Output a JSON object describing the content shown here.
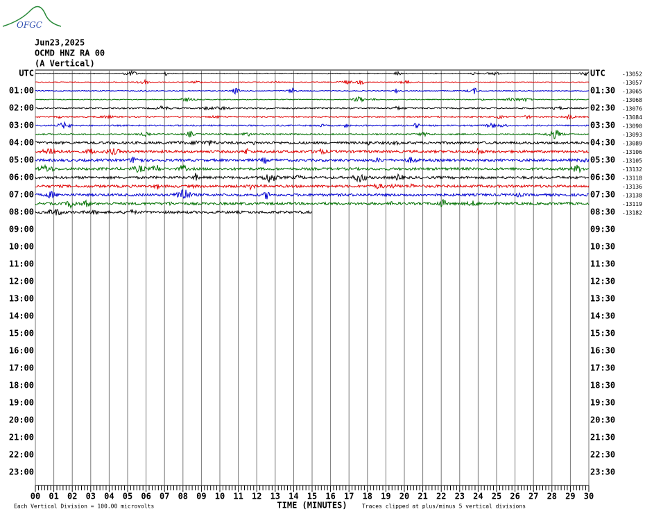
{
  "logo": "OFGC",
  "header": {
    "date": "Jun23,2025",
    "station": "OCMD HNZ RA 00",
    "component": "(A Vertical)"
  },
  "left_labels": [
    "UTC",
    "01:00",
    "02:00",
    "03:00",
    "04:00",
    "05:00",
    "06:00",
    "07:00",
    "08:00",
    "09:00",
    "10:00",
    "11:00",
    "12:00",
    "13:00",
    "14:00",
    "15:00",
    "16:00",
    "17:00",
    "18:00",
    "19:00",
    "20:00",
    "21:00",
    "22:00",
    "23:00"
  ],
  "right_labels": [
    "UTC",
    "01:30",
    "02:30",
    "03:30",
    "04:30",
    "05:30",
    "06:30",
    "07:30",
    "08:30",
    "09:30",
    "10:30",
    "11:30",
    "12:30",
    "13:30",
    "14:30",
    "15:30",
    "16:30",
    "17:30",
    "18:30",
    "19:30",
    "20:30",
    "21:30",
    "22:30",
    "23:30"
  ],
  "offsets": [
    "-13052",
    "-13057",
    "-13065",
    "-13068",
    "-13076",
    "-13084",
    "-13090",
    "-13093",
    "-13089",
    "-13106",
    "-13105",
    "-13132",
    "-13118",
    "-13136",
    "-13138",
    "-13119",
    "-13182"
  ],
  "trace_colors": [
    "#000000",
    "#e00000",
    "#0000d0",
    "#007000"
  ],
  "x_axis": {
    "labels": [
      "00",
      "01",
      "02",
      "03",
      "04",
      "05",
      "06",
      "07",
      "08",
      "09",
      "10",
      "11",
      "12",
      "13",
      "14",
      "15",
      "16",
      "17",
      "18",
      "19",
      "20",
      "21",
      "22",
      "23",
      "24",
      "25",
      "26",
      "27",
      "28",
      "29",
      "30"
    ],
    "title": "TIME (MINUTES)"
  },
  "footer": {
    "scale": "Each Vertical Division =  100.00 microvolts",
    "clip": "Traces clipped at plus/minus 5 vertical divisions"
  }
}
